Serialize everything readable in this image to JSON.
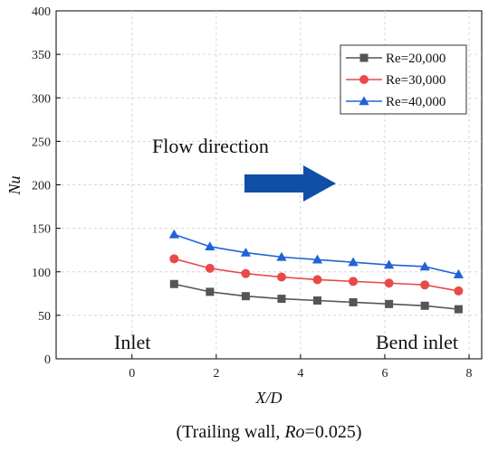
{
  "chart_data": {
    "type": "line",
    "title": "",
    "xlabel": "X/D",
    "ylabel": "Nu",
    "xlim": [
      -1.8,
      8.3
    ],
    "ylim": [
      0,
      400
    ],
    "xticks": [
      0,
      2,
      4,
      6,
      8
    ],
    "yticks": [
      0,
      50,
      100,
      150,
      200,
      250,
      300,
      350,
      400
    ],
    "grid": true,
    "legend_position": "top-right",
    "series": [
      {
        "name": "Re=20,000",
        "color": "#555555",
        "marker": "square",
        "x": [
          1.0,
          1.85,
          2.7,
          3.55,
          4.4,
          5.25,
          6.1,
          6.95,
          7.75
        ],
        "values": [
          86,
          77,
          72,
          69,
          67,
          65,
          63,
          61,
          57
        ]
      },
      {
        "name": "Re=30,000",
        "color": "#e84a4a",
        "marker": "circle",
        "x": [
          1.0,
          1.85,
          2.7,
          3.55,
          4.4,
          5.25,
          6.1,
          6.95,
          7.75
        ],
        "values": [
          115,
          104,
          98,
          94,
          91,
          89,
          87,
          85,
          78
        ]
      },
      {
        "name": "Re=40,000",
        "color": "#1f63d6",
        "marker": "triangle",
        "x": [
          1.0,
          1.85,
          2.7,
          3.55,
          4.4,
          5.25,
          6.1,
          6.95,
          7.75
        ],
        "values": [
          143,
          129,
          122,
          117,
          114,
          111,
          108,
          106,
          97
        ]
      }
    ],
    "annotations": {
      "flow_direction": "Flow direction",
      "inlet": "Inlet",
      "bend_inlet": "Bend inlet"
    },
    "arrow_color": "#0f4fa8",
    "caption_prefix": "(Trailing wall, ",
    "caption_italic": "Ro",
    "caption_suffix": "=0.025)"
  }
}
